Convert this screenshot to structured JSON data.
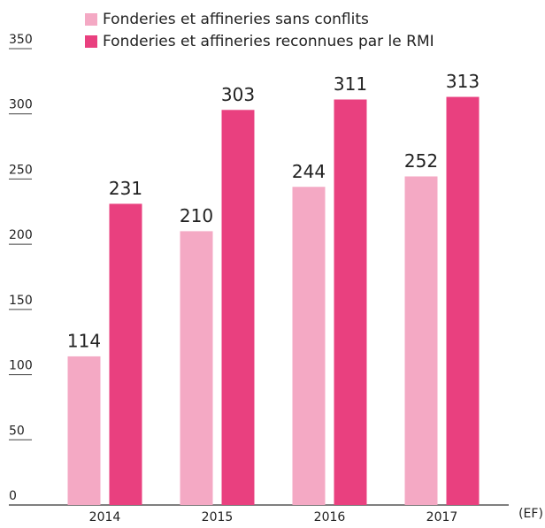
{
  "chart_data": {
    "type": "bar",
    "categories": [
      "2014",
      "2015",
      "2016",
      "2017"
    ],
    "series": [
      {
        "name": "Fonderies et affineries sans conflits",
        "color": "#f4a9c4",
        "values": [
          114,
          210,
          244,
          252
        ]
      },
      {
        "name": "Fonderies et affineries reconnues par le RMI",
        "color": "#e9407f",
        "values": [
          231,
          303,
          311,
          313
        ]
      }
    ],
    "x_unit": "(EF)",
    "ylim": [
      0,
      350
    ],
    "yticks": [
      0,
      50,
      100,
      150,
      200,
      250,
      300,
      350
    ],
    "legend": "top"
  }
}
